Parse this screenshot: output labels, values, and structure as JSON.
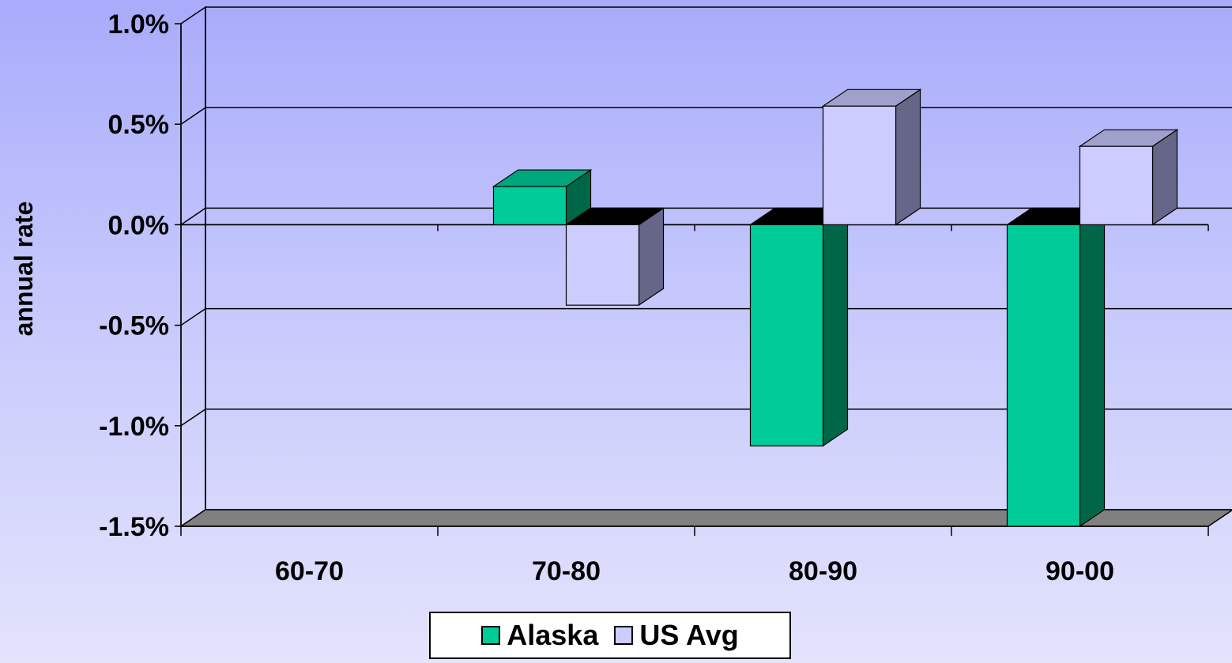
{
  "chart_data": {
    "type": "bar",
    "style": "3d-clustered-column",
    "categories": [
      "60-70",
      "70-80",
      "80-90",
      "90-00"
    ],
    "series": [
      {
        "name": "Alaska",
        "values": [
          null,
          0.19,
          -1.1,
          -1.5
        ],
        "color": "#00cc99",
        "side_color": "#006648",
        "top_color": "#00a67c"
      },
      {
        "name": "US Avg",
        "values": [
          null,
          -0.4,
          0.59,
          0.39
        ],
        "color": "#ccccff",
        "side_color": "#666688",
        "top_color": "#a0a0cc"
      }
    ],
    "y_ticks": [
      "1.0%",
      "0.5%",
      "0.0%",
      "-0.5%",
      "-1.0%",
      "-1.5%"
    ],
    "ylim": [
      -1.5,
      1.0
    ],
    "yunit": "%",
    "ylabel": "annual rate",
    "xlabel": "",
    "grid": true,
    "legend": "bottom-center"
  }
}
